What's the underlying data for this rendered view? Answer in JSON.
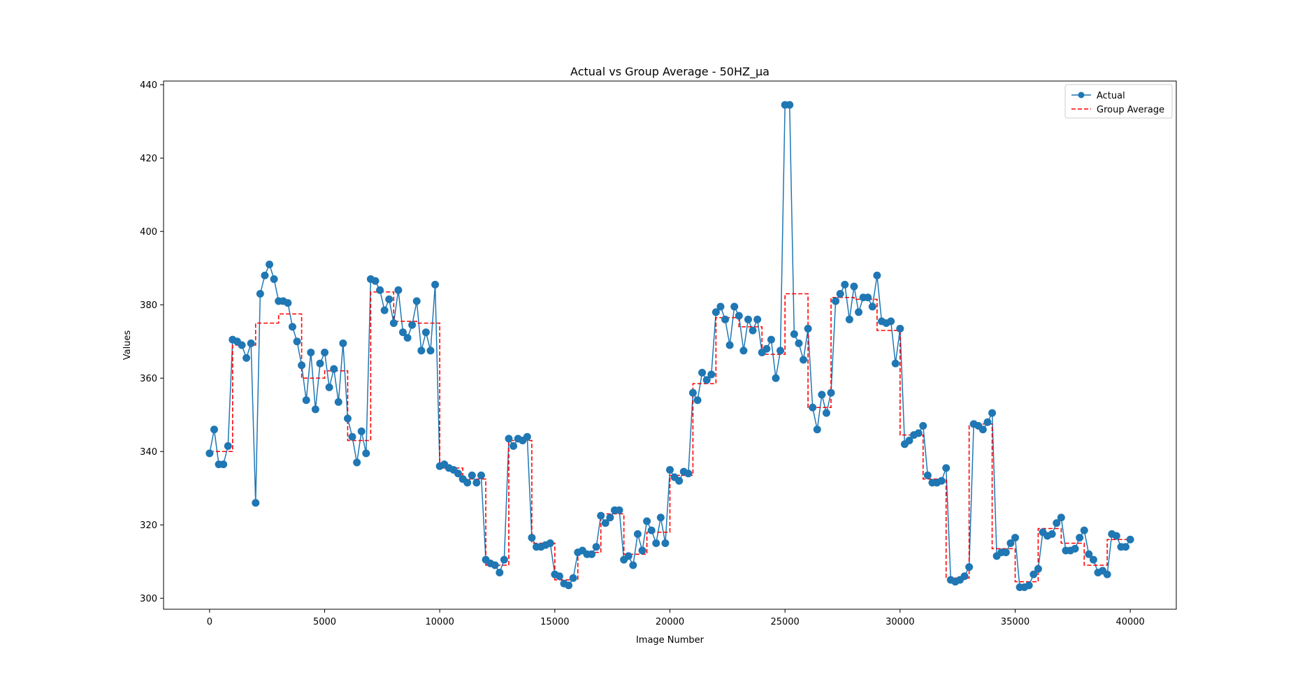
{
  "chart_data": {
    "type": "line",
    "title": "Actual vs Group Average - 50HZ_µa",
    "xlabel": "Image Number",
    "ylabel": "Values",
    "xlim": [
      -2000,
      42000
    ],
    "ylim": [
      297,
      441
    ],
    "xticks": [
      0,
      5000,
      10000,
      15000,
      20000,
      25000,
      30000,
      35000,
      40000
    ],
    "yticks": [
      300,
      320,
      340,
      360,
      380,
      400,
      420,
      440
    ],
    "grid": false,
    "legend_position": "top-right",
    "series": [
      {
        "name": "Actual",
        "color": "#1f77b4",
        "style": "solid line with circle markers",
        "points": [
          [
            0,
            339.5
          ],
          [
            200,
            346
          ],
          [
            400,
            336.5
          ],
          [
            600,
            336.5
          ],
          [
            800,
            341.5
          ],
          [
            1000,
            370.5
          ],
          [
            1200,
            370
          ],
          [
            1400,
            369
          ],
          [
            1600,
            365.5
          ],
          [
            1800,
            369.5
          ],
          [
            2000,
            326
          ],
          [
            2200,
            383
          ],
          [
            2400,
            388
          ],
          [
            2600,
            391
          ],
          [
            2800,
            387
          ],
          [
            3000,
            381
          ],
          [
            3200,
            381
          ],
          [
            3400,
            380.5
          ],
          [
            3600,
            374
          ],
          [
            3800,
            370
          ],
          [
            4000,
            363.5
          ],
          [
            4200,
            354
          ],
          [
            4400,
            367
          ],
          [
            4600,
            351.5
          ],
          [
            4800,
            364
          ],
          [
            5000,
            367
          ],
          [
            5200,
            357.5
          ],
          [
            5400,
            362.5
          ],
          [
            5600,
            353.5
          ],
          [
            5800,
            369.5
          ],
          [
            6000,
            349
          ],
          [
            6200,
            344
          ],
          [
            6400,
            337
          ],
          [
            6600,
            345.5
          ],
          [
            6800,
            339.5
          ],
          [
            7000,
            387
          ],
          [
            7200,
            386.5
          ],
          [
            7400,
            384
          ],
          [
            7600,
            378.5
          ],
          [
            7800,
            381.5
          ],
          [
            8000,
            375
          ],
          [
            8200,
            384
          ],
          [
            8400,
            372.5
          ],
          [
            8600,
            371
          ],
          [
            8800,
            374.5
          ],
          [
            9000,
            381
          ],
          [
            9200,
            367.5
          ],
          [
            9400,
            372.5
          ],
          [
            9600,
            367.5
          ],
          [
            9800,
            385.5
          ],
          [
            10000,
            336
          ],
          [
            10200,
            336.5
          ],
          [
            10400,
            335.5
          ],
          [
            10600,
            335
          ],
          [
            10800,
            334
          ],
          [
            11000,
            332.5
          ],
          [
            11200,
            331.5
          ],
          [
            11400,
            333.5
          ],
          [
            11600,
            331.5
          ],
          [
            11800,
            333.5
          ],
          [
            12000,
            310.5
          ],
          [
            12200,
            309.5
          ],
          [
            12400,
            309
          ],
          [
            12600,
            307
          ],
          [
            12800,
            310.5
          ],
          [
            13000,
            343.5
          ],
          [
            13200,
            341.5
          ],
          [
            13400,
            343.5
          ],
          [
            13600,
            343
          ],
          [
            13800,
            344
          ],
          [
            14000,
            316.5
          ],
          [
            14200,
            314
          ],
          [
            14400,
            314
          ],
          [
            14600,
            314.5
          ],
          [
            14800,
            315
          ],
          [
            15000,
            306.5
          ],
          [
            15200,
            306
          ],
          [
            15400,
            304
          ],
          [
            15600,
            303.5
          ],
          [
            15800,
            305.5
          ],
          [
            16000,
            312.5
          ],
          [
            16200,
            313
          ],
          [
            16400,
            312
          ],
          [
            16600,
            312
          ],
          [
            16800,
            314
          ],
          [
            17000,
            322.5
          ],
          [
            17200,
            320.5
          ],
          [
            17400,
            322
          ],
          [
            17600,
            324
          ],
          [
            17800,
            324
          ],
          [
            18000,
            310.5
          ],
          [
            18200,
            311.5
          ],
          [
            18400,
            309
          ],
          [
            18600,
            317.5
          ],
          [
            18800,
            313
          ],
          [
            19000,
            321
          ],
          [
            19200,
            318.5
          ],
          [
            19400,
            315
          ],
          [
            19600,
            322
          ],
          [
            19800,
            315
          ],
          [
            20000,
            335
          ],
          [
            20200,
            333
          ],
          [
            20400,
            332
          ],
          [
            20600,
            334.5
          ],
          [
            20800,
            334
          ],
          [
            21000,
            356
          ],
          [
            21200,
            354
          ],
          [
            21400,
            361.5
          ],
          [
            21600,
            359.5
          ],
          [
            21800,
            361
          ],
          [
            22000,
            378
          ],
          [
            22200,
            379.5
          ],
          [
            22400,
            376
          ],
          [
            22600,
            369
          ],
          [
            22800,
            379.5
          ],
          [
            23000,
            377
          ],
          [
            23200,
            367.5
          ],
          [
            23400,
            376
          ],
          [
            23600,
            373
          ],
          [
            23800,
            376
          ],
          [
            24000,
            367
          ],
          [
            24200,
            368
          ],
          [
            24400,
            370.5
          ],
          [
            24600,
            360
          ],
          [
            24800,
            367.5
          ],
          [
            25000,
            434.5
          ],
          [
            25200,
            434.5
          ],
          [
            25400,
            372
          ],
          [
            25600,
            369.5
          ],
          [
            25800,
            365
          ],
          [
            26000,
            373.5
          ],
          [
            26200,
            352
          ],
          [
            26400,
            346
          ],
          [
            26600,
            355.5
          ],
          [
            26800,
            350.5
          ],
          [
            27000,
            356
          ],
          [
            27200,
            381
          ],
          [
            27400,
            383
          ],
          [
            27600,
            385.5
          ],
          [
            27800,
            376
          ],
          [
            28000,
            385
          ],
          [
            28200,
            378
          ],
          [
            28400,
            382
          ],
          [
            28600,
            382
          ],
          [
            28800,
            379.5
          ],
          [
            29000,
            388
          ],
          [
            29200,
            375.5
          ],
          [
            29400,
            375
          ],
          [
            29600,
            375.5
          ],
          [
            29800,
            364
          ],
          [
            30000,
            373.5
          ],
          [
            30200,
            342
          ],
          [
            30400,
            343
          ],
          [
            30600,
            344.5
          ],
          [
            30800,
            345
          ],
          [
            31000,
            347
          ],
          [
            31200,
            333.5
          ],
          [
            31400,
            331.5
          ],
          [
            31600,
            331.5
          ],
          [
            31800,
            332
          ],
          [
            32000,
            335.5
          ],
          [
            32200,
            305
          ],
          [
            32400,
            304.5
          ],
          [
            32600,
            305
          ],
          [
            32800,
            306
          ],
          [
            33000,
            308.5
          ],
          [
            33200,
            347.5
          ],
          [
            33400,
            347
          ],
          [
            33600,
            346
          ],
          [
            33800,
            348
          ],
          [
            34000,
            350.5
          ],
          [
            34200,
            311.5
          ],
          [
            34400,
            312.5
          ],
          [
            34600,
            312.5
          ],
          [
            34800,
            315
          ],
          [
            35000,
            316.5
          ],
          [
            35200,
            303
          ],
          [
            35400,
            303
          ],
          [
            35600,
            303.5
          ],
          [
            35800,
            306.5
          ],
          [
            36000,
            308
          ],
          [
            36200,
            318
          ],
          [
            36400,
            317
          ],
          [
            36600,
            317.5
          ],
          [
            36800,
            320.5
          ],
          [
            37000,
            322
          ],
          [
            37200,
            313
          ],
          [
            37400,
            313
          ],
          [
            37600,
            313.5
          ],
          [
            37800,
            316.5
          ],
          [
            38000,
            318.5
          ],
          [
            38200,
            312
          ],
          [
            38400,
            310.5
          ],
          [
            38600,
            307
          ],
          [
            38800,
            307.5
          ],
          [
            39000,
            306.5
          ],
          [
            39200,
            317.5
          ],
          [
            39400,
            317
          ],
          [
            39600,
            314
          ],
          [
            39800,
            314
          ],
          [
            40000,
            316
          ]
        ]
      },
      {
        "name": "Group Average",
        "color": "#ff0000",
        "style": "dashed step line",
        "segments": [
          {
            "x": [
              0,
              1000
            ],
            "y": 340
          },
          {
            "x": [
              1000,
              2000
            ],
            "y": 369
          },
          {
            "x": [
              2000,
              3000
            ],
            "y": 375
          },
          {
            "x": [
              3000,
              4000
            ],
            "y": 377.5
          },
          {
            "x": [
              4000,
              5000
            ],
            "y": 360
          },
          {
            "x": [
              5000,
              6000
            ],
            "y": 362
          },
          {
            "x": [
              6000,
              7000
            ],
            "y": 343
          },
          {
            "x": [
              7000,
              8000
            ],
            "y": 383.5
          },
          {
            "x": [
              8000,
              9000
            ],
            "y": 375.5
          },
          {
            "x": [
              9000,
              10000
            ],
            "y": 375
          },
          {
            "x": [
              10000,
              11000
            ],
            "y": 335.5
          },
          {
            "x": [
              11000,
              12000
            ],
            "y": 332.5
          },
          {
            "x": [
              12000,
              13000
            ],
            "y": 309
          },
          {
            "x": [
              13000,
              14000
            ],
            "y": 343
          },
          {
            "x": [
              14000,
              15000
            ],
            "y": 315
          },
          {
            "x": [
              15000,
              16000
            ],
            "y": 305
          },
          {
            "x": [
              16000,
              17000
            ],
            "y": 312.5
          },
          {
            "x": [
              17000,
              18000
            ],
            "y": 323
          },
          {
            "x": [
              18000,
              19000
            ],
            "y": 312
          },
          {
            "x": [
              19000,
              20000
            ],
            "y": 318
          },
          {
            "x": [
              20000,
              21000
            ],
            "y": 333.5
          },
          {
            "x": [
              21000,
              22000
            ],
            "y": 358.5
          },
          {
            "x": [
              22000,
              23000
            ],
            "y": 376.5
          },
          {
            "x": [
              23000,
              24000
            ],
            "y": 374
          },
          {
            "x": [
              24000,
              25000
            ],
            "y": 366.5
          },
          {
            "x": [
              25000,
              26000
            ],
            "y": 383
          },
          {
            "x": [
              26000,
              27000
            ],
            "y": 352
          },
          {
            "x": [
              27000,
              28000
            ],
            "y": 382
          },
          {
            "x": [
              28000,
              29000
            ],
            "y": 381.5
          },
          {
            "x": [
              29000,
              30000
            ],
            "y": 373
          },
          {
            "x": [
              30000,
              31000
            ],
            "y": 344.5
          },
          {
            "x": [
              31000,
              32000
            ],
            "y": 332.5
          },
          {
            "x": [
              32000,
              33000
            ],
            "y": 305.5
          },
          {
            "x": [
              33000,
              34000
            ],
            "y": 347.5
          },
          {
            "x": [
              34000,
              35000
            ],
            "y": 313.5
          },
          {
            "x": [
              35000,
              36000
            ],
            "y": 304.5
          },
          {
            "x": [
              36000,
              37000
            ],
            "y": 319
          },
          {
            "x": [
              37000,
              38000
            ],
            "y": 315
          },
          {
            "x": [
              38000,
              39000
            ],
            "y": 309
          },
          {
            "x": [
              39000,
              40000
            ],
            "y": 316
          }
        ]
      }
    ]
  }
}
